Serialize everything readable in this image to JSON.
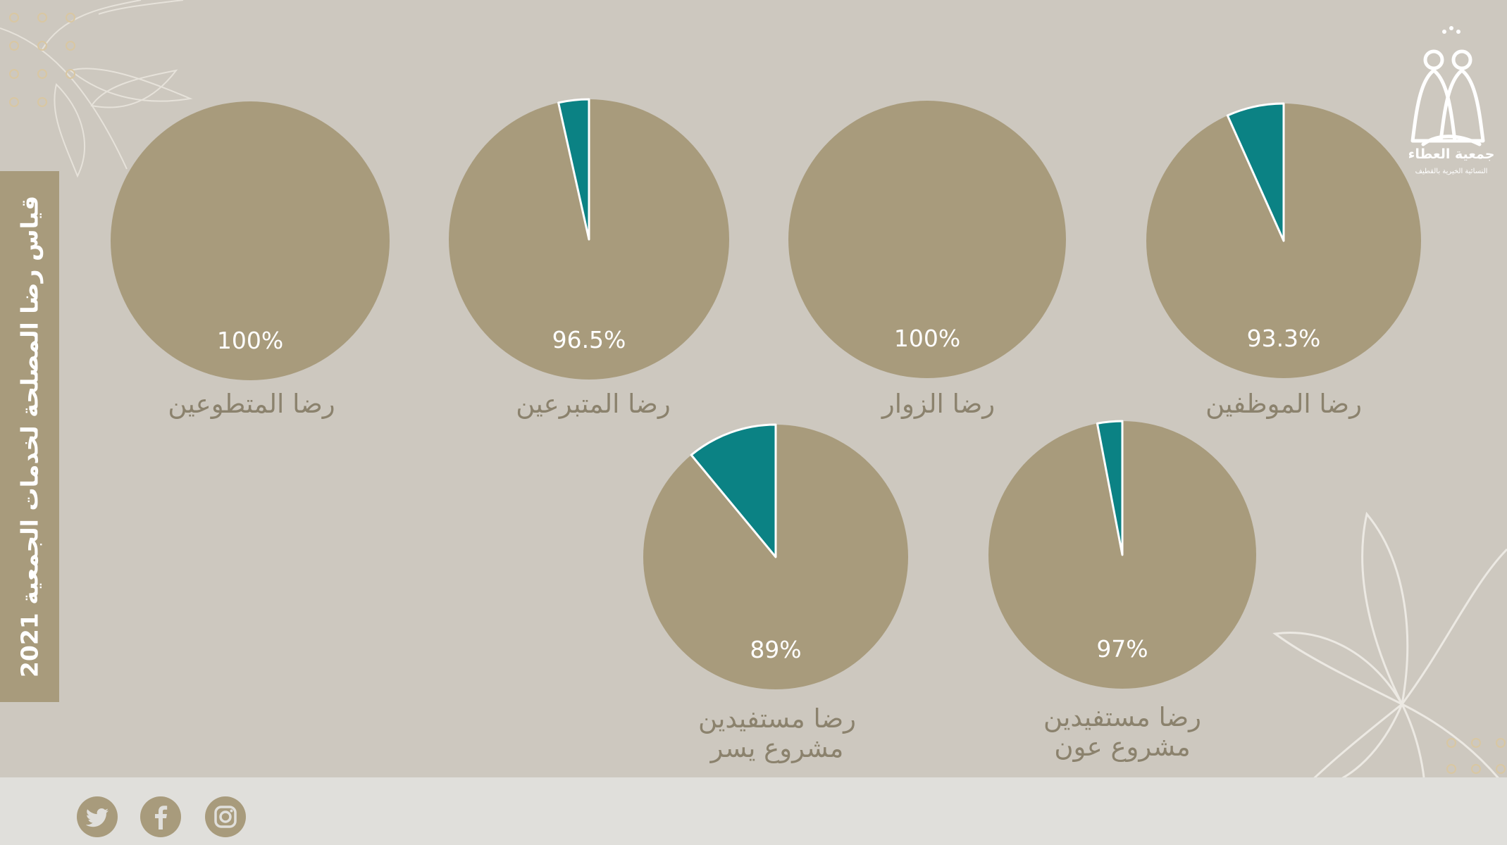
{
  "title": "قياس رضا المصلحة لخدمات الجمعية 2021",
  "logo": {
    "name": "جمعية العطاء",
    "subtitle": "النسائية الخيرية بالقطيف"
  },
  "colors": {
    "background": "#cdc8bf",
    "main": "#a89b7c",
    "accent": "#0b8284",
    "label": "#8b826d",
    "footer": "#e0dfdb"
  },
  "social": [
    {
      "icon": "twitter-icon"
    },
    {
      "icon": "facebook-icon"
    },
    {
      "icon": "instagram-icon"
    }
  ],
  "chart_data": [
    {
      "type": "pie",
      "title": "",
      "slices": [
        {
          "label": "رضا الموظفين",
          "value": 93.3
        },
        {
          "label": "",
          "value": 6.7
        }
      ],
      "value_label": "93.3%",
      "category_label": [
        "رضا الموظفين"
      ]
    },
    {
      "type": "pie",
      "title": "",
      "slices": [
        {
          "label": "رضا الزوار",
          "value": 100
        },
        {
          "label": "",
          "value": 0
        }
      ],
      "value_label": "100%",
      "category_label": [
        "رضا الزوار"
      ]
    },
    {
      "type": "pie",
      "title": "",
      "slices": [
        {
          "label": "رضا المتبرعين",
          "value": 96.5
        },
        {
          "label": "",
          "value": 3.5
        }
      ],
      "value_label": "96.5%",
      "category_label": [
        "رضا المتبرعين"
      ]
    },
    {
      "type": "pie",
      "title": "",
      "slices": [
        {
          "label": "رضا المتطوعين",
          "value": 100
        },
        {
          "label": "",
          "value": 0
        }
      ],
      "value_label": "100%",
      "category_label": [
        "رضا المتطوعين"
      ]
    },
    {
      "type": "pie",
      "title": "",
      "slices": [
        {
          "label": "رضا مستفيدين مشروع عون",
          "value": 97
        },
        {
          "label": "",
          "value": 3
        }
      ],
      "value_label": "97%",
      "category_label": [
        "رضا مستفيدين",
        "مشروع عون"
      ]
    },
    {
      "type": "pie",
      "title": "",
      "slices": [
        {
          "label": "رضا مستفيدين مشروع يسر",
          "value": 89
        },
        {
          "label": "",
          "value": 11
        }
      ],
      "value_label": "89%",
      "category_label": [
        "رضا مستفيدين",
        "مشروع يسر"
      ]
    }
  ]
}
